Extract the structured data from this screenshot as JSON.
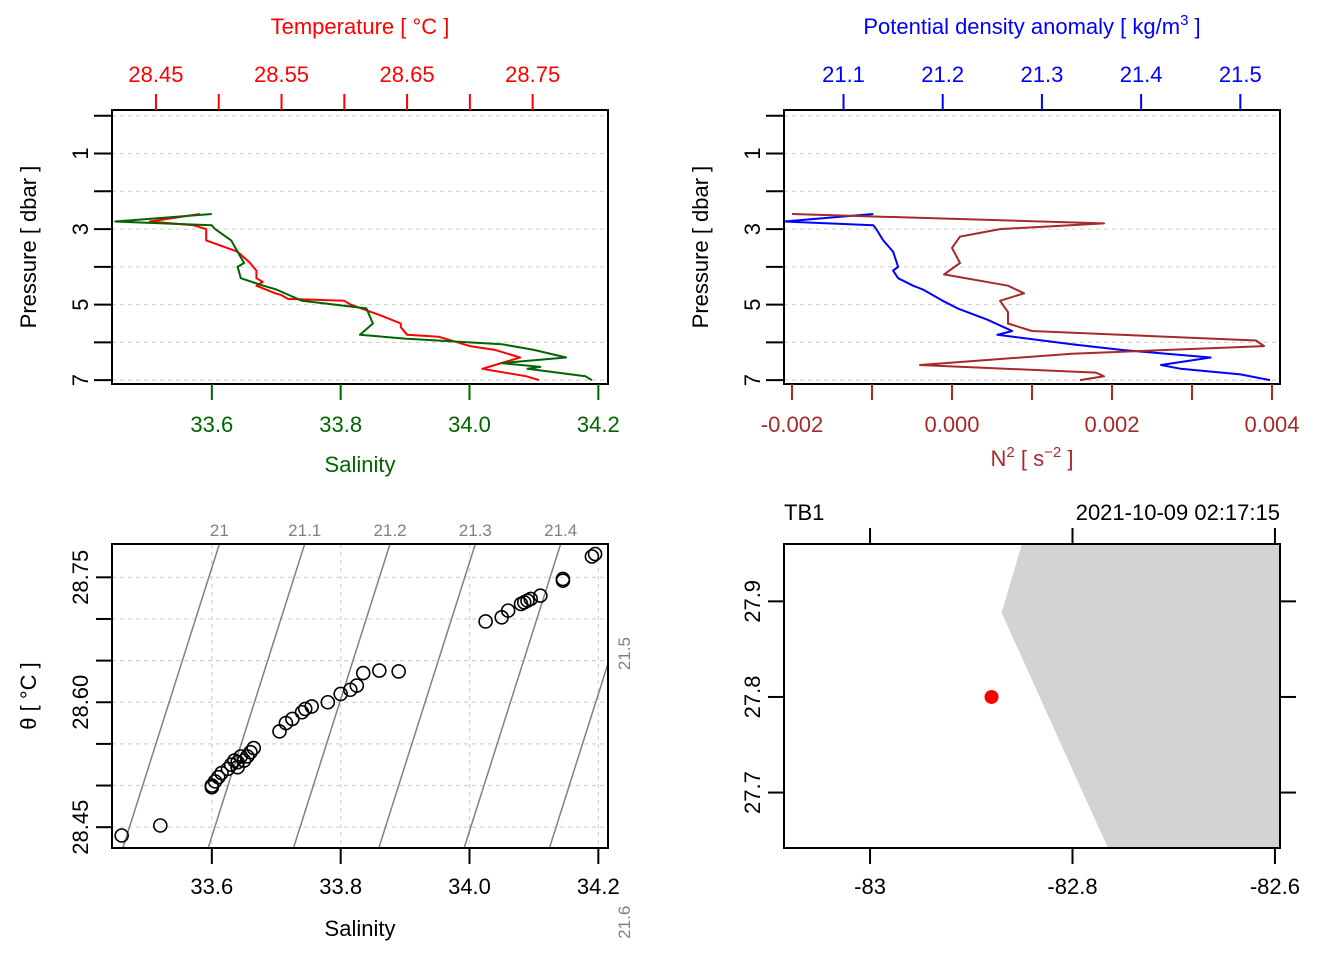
{
  "chart_data": [
    {
      "id": "ts-profile",
      "type": "line",
      "top_axis_label": "Temperature [ °C ]",
      "bottom_axis_label": "Salinity",
      "left_axis_label": "Pressure [ dbar ]",
      "colors": {
        "temperature": "#ff0000",
        "salinity": "#006400",
        "grid": "#d3d3d3"
      },
      "pressure_ylim": [
        7.05,
        -0.1
      ],
      "pressure_ticks": [
        0,
        1,
        2,
        3,
        4,
        5,
        6,
        7
      ],
      "pressure_tick_labels": [
        "1",
        "3",
        "5",
        "7"
      ],
      "pressure_label_values": [
        1,
        3,
        5,
        7
      ],
      "grid": true,
      "temperature_xlim": [
        28.415,
        28.81
      ],
      "temperature_ticks": [
        28.45,
        28.5,
        28.55,
        28.6,
        28.65,
        28.7,
        28.75
      ],
      "temperature_tick_labels": [
        "28.45",
        "28.55",
        "28.65",
        "28.75"
      ],
      "temperature_label_values": [
        28.45,
        28.55,
        28.65,
        28.75
      ],
      "salinity_xlim": [
        33.445,
        34.215
      ],
      "salinity_ticks": [
        33.6,
        33.8,
        34.0,
        34.2
      ],
      "salinity_tick_labels": [
        "33.6",
        "33.8",
        "34.0",
        "34.2"
      ],
      "series": [
        {
          "name": "Temperature",
          "axis": "temperature",
          "p": [
            2.6,
            2.8,
            2.9,
            3.0,
            3.3,
            3.6,
            3.9,
            4.1,
            4.3,
            4.4,
            4.5,
            4.7,
            4.75,
            4.85,
            4.9,
            5.0,
            5.3,
            5.5,
            5.6,
            5.8,
            5.85,
            6.1,
            6.2,
            6.4,
            6.6,
            6.7,
            6.9,
            7.0
          ],
          "v": [
            28.485,
            28.445,
            28.48,
            28.49,
            28.49,
            28.515,
            28.525,
            28.53,
            28.53,
            28.535,
            28.53,
            28.545,
            28.55,
            28.555,
            28.6,
            28.605,
            28.63,
            28.645,
            28.645,
            28.65,
            28.675,
            28.7,
            28.72,
            28.74,
            28.72,
            28.71,
            28.745,
            28.755
          ]
        },
        {
          "name": "Salinity",
          "axis": "salinity",
          "p": [
            2.6,
            2.8,
            2.9,
            3.0,
            3.3,
            3.6,
            3.9,
            4.0,
            4.3,
            4.5,
            4.6,
            4.9,
            5.1,
            5.5,
            5.8,
            5.9,
            6.05,
            6.2,
            6.4,
            6.55,
            6.65,
            6.7,
            6.9,
            7.0
          ],
          "v": [
            33.6,
            33.45,
            33.6,
            33.605,
            33.63,
            33.64,
            33.65,
            33.64,
            33.645,
            33.68,
            33.7,
            33.74,
            33.84,
            33.85,
            33.83,
            33.9,
            34.05,
            34.1,
            34.15,
            34.05,
            34.11,
            34.09,
            34.18,
            34.19
          ]
        }
      ]
    },
    {
      "id": "density-profile",
      "type": "line",
      "top_axis_label": "Potential density anomaly [ kg/m",
      "top_axis_superscript": "3",
      "top_axis_label_end": " ]",
      "bottom_axis_label": "N",
      "bottom_axis_superscript": "2",
      "bottom_axis_unit": " [ s",
      "bottom_axis_unit_superscript": "−2",
      "bottom_axis_unit_end": " ]",
      "left_axis_label": "Pressure [ dbar ]",
      "colors": {
        "density": "#0000ff",
        "n2": "#a52a2a",
        "grid": "#d3d3d3"
      },
      "pressure_ylim": [
        7.05,
        -0.1
      ],
      "pressure_ticks": [
        0,
        1,
        2,
        3,
        4,
        5,
        6,
        7
      ],
      "pressure_tick_labels": [
        "1",
        "3",
        "5",
        "7"
      ],
      "pressure_label_values": [
        1,
        3,
        5,
        7
      ],
      "grid": true,
      "density_xlim": [
        21.04,
        21.54
      ],
      "density_ticks": [
        21.1,
        21.2,
        21.3,
        21.4,
        21.5
      ],
      "density_tick_labels": [
        "21.1",
        "21.2",
        "21.3",
        "21.4",
        "21.5"
      ],
      "n2_xlim": [
        -0.0021,
        0.0041
      ],
      "n2_ticks": [
        -0.002,
        -0.001,
        0.0,
        0.001,
        0.002,
        0.003,
        0.004
      ],
      "n2_tick_labels": [
        "-0.002",
        "0.000",
        "0.002",
        "0.004"
      ],
      "n2_label_values": [
        -0.002,
        0.0,
        0.002,
        0.004
      ],
      "series": [
        {
          "name": "Potential density anomaly",
          "axis": "density",
          "p": [
            2.6,
            2.8,
            2.9,
            3.0,
            3.3,
            3.6,
            4.0,
            4.1,
            4.3,
            4.5,
            4.6,
            4.9,
            5.1,
            5.4,
            5.7,
            5.8,
            6.05,
            6.2,
            6.4,
            6.6,
            6.7,
            6.85,
            7.0
          ],
          "v": [
            21.13,
            21.04,
            21.13,
            21.133,
            21.14,
            21.15,
            21.155,
            21.15,
            21.155,
            21.17,
            21.18,
            21.2,
            21.215,
            21.245,
            21.27,
            21.255,
            21.33,
            21.38,
            21.47,
            21.42,
            21.44,
            21.5,
            21.53
          ]
        },
        {
          "name": "N2",
          "axis": "n2",
          "p": [
            2.6,
            2.85,
            3.0,
            3.2,
            3.5,
            3.9,
            4.2,
            4.5,
            4.7,
            4.9,
            5.2,
            5.5,
            5.7,
            5.95,
            6.1,
            6.3,
            6.6,
            6.8,
            6.9,
            7.0
          ],
          "v": [
            -0.002,
            0.0019,
            0.0006,
            0.0001,
            0.0,
            0.0001,
            -0.0001,
            0.0007,
            0.0009,
            0.0006,
            0.0007,
            0.0007,
            0.001,
            0.0038,
            0.0039,
            0.0015,
            -0.0004,
            0.0018,
            0.0019,
            0.0016
          ]
        }
      ]
    },
    {
      "id": "ts-diagram",
      "type": "scatter",
      "xlabel": "Salinity",
      "ylabel": "θ [ °C ]",
      "xlim": [
        33.445,
        34.215
      ],
      "ylim": [
        28.425,
        28.79
      ],
      "x_ticks": [
        33.6,
        33.8,
        34.0,
        34.2
      ],
      "x_tick_labels": [
        "33.6",
        "33.8",
        "34.0",
        "34.2"
      ],
      "y_ticks": [
        28.45,
        28.5,
        28.55,
        28.6,
        28.65,
        28.7,
        28.75
      ],
      "y_tick_labels": [
        "28.45",
        "28.60",
        "28.75"
      ],
      "y_label_values": [
        28.45,
        28.6,
        28.75
      ],
      "grid": true,
      "isopycnal_labels": [
        "21",
        "21.1",
        "21.2",
        "21.3",
        "21.4",
        "21.5",
        "21.6"
      ],
      "isopycnal_values": [
        21.0,
        21.1,
        21.2,
        21.3,
        21.4,
        21.5,
        21.6
      ],
      "colors": {
        "points": "#000000",
        "isopycnals": "#808080",
        "grid": "#d3d3d3"
      },
      "points": {
        "x": [
          33.46,
          33.52,
          33.6,
          33.605,
          33.61,
          33.6,
          33.615,
          33.625,
          33.63,
          33.635,
          33.64,
          33.645,
          33.64,
          33.65,
          33.655,
          33.66,
          33.665,
          33.705,
          33.715,
          33.725,
          33.74,
          33.745,
          33.755,
          33.78,
          33.8,
          33.815,
          33.825,
          33.835,
          33.86,
          33.89,
          34.025,
          34.05,
          34.06,
          34.08,
          34.085,
          34.09,
          34.095,
          34.11,
          34.145,
          34.145,
          34.19,
          34.195
        ],
        "y": [
          28.44,
          28.452,
          28.5,
          28.505,
          28.51,
          28.498,
          28.515,
          28.52,
          28.525,
          28.53,
          28.528,
          28.535,
          28.522,
          28.53,
          28.535,
          28.54,
          28.545,
          28.565,
          28.575,
          28.58,
          28.588,
          28.592,
          28.595,
          28.6,
          28.61,
          28.615,
          28.62,
          28.635,
          28.638,
          28.637,
          28.697,
          28.702,
          28.71,
          28.718,
          28.72,
          28.722,
          28.724,
          28.728,
          28.746,
          28.748,
          28.775,
          28.778
        ]
      }
    },
    {
      "id": "station-map",
      "type": "scatter",
      "station_label": "TB1",
      "timestamp": "2021-10-09 02:17:15",
      "xlim": [
        -83.085,
        -82.595
      ],
      "ylim": [
        27.642,
        27.96
      ],
      "x_ticks": [
        -83.0,
        -82.8,
        -82.6
      ],
      "x_tick_labels": [
        "-83",
        "-82.8",
        "-82.6"
      ],
      "y_ticks": [
        27.7,
        27.8,
        27.9
      ],
      "y_tick_labels": [
        "27.7",
        "27.8",
        "27.9"
      ],
      "station": {
        "lon": -82.88,
        "lat": 27.8
      },
      "land_polygon": {
        "lon": [
          -82.85,
          -82.87,
          -82.765,
          -82.595,
          -82.595
        ],
        "lat": [
          27.96,
          27.888,
          27.642,
          27.642,
          27.96
        ]
      },
      "colors": {
        "station": "#ff0000",
        "land": "#d3d3d3"
      }
    }
  ]
}
